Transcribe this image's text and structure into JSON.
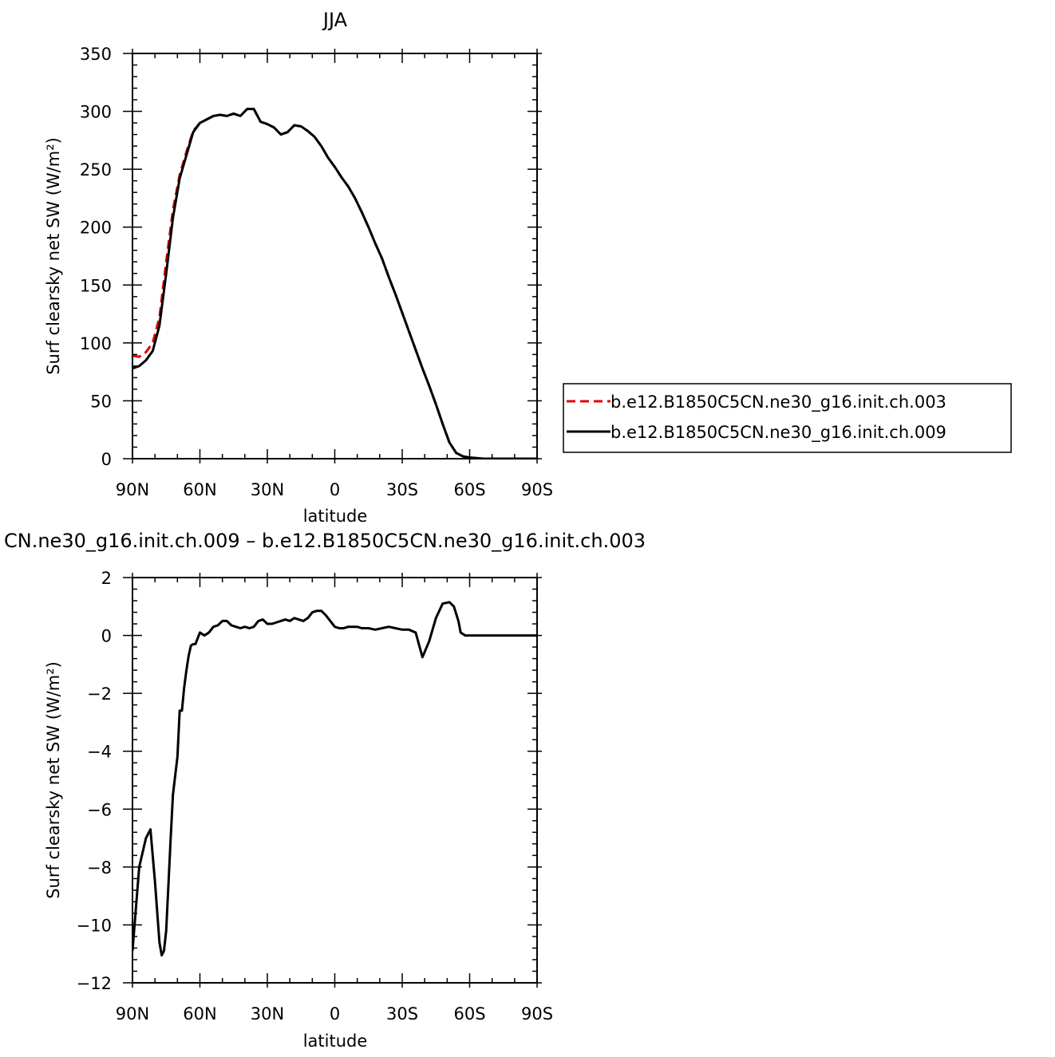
{
  "chart_data": [
    {
      "type": "line",
      "title": "JJA",
      "xlabel": "latitude",
      "ylabel": "Surf clearsky net SW (W/m²)",
      "xlim": [
        90,
        -90
      ],
      "ylim": [
        0,
        350
      ],
      "x_ticks": [
        90,
        60,
        30,
        0,
        -30,
        -60,
        -90
      ],
      "x_tick_labels": [
        "90N",
        "60N",
        "30N",
        "0",
        "30S",
        "60S",
        "90S"
      ],
      "y_ticks": [
        0,
        50,
        100,
        150,
        200,
        250,
        300,
        350
      ],
      "y_tick_labels": [
        "0",
        "50",
        "100",
        "150",
        "200",
        "250",
        "300",
        "350"
      ],
      "grid": false,
      "legend": "right",
      "series": [
        {
          "name": "b.e12.B1850C5CN.ne30_g16.init.ch.003",
          "color": "#e00000",
          "dash": "dashed",
          "x": [
            90,
            87,
            84,
            81,
            78,
            75,
            72,
            69,
            66,
            63,
            60,
            57,
            54,
            51,
            48,
            45,
            42,
            39,
            36,
            33,
            30,
            27,
            24,
            21,
            18,
            15,
            12,
            9,
            6,
            3,
            0,
            -3,
            -6,
            -9,
            -12,
            -15,
            -18,
            -21,
            -24,
            -27,
            -30,
            -33,
            -36,
            -39,
            -42,
            -45,
            -48,
            -51,
            -54,
            -57,
            -60,
            -63,
            -66,
            -69,
            -72,
            -75,
            -78,
            -81,
            -84,
            -87,
            -90
          ],
          "values": [
            89,
            88,
            92,
            100,
            122,
            170,
            215,
            245,
            265,
            283,
            290,
            293,
            296,
            297,
            296,
            298,
            296,
            302,
            302,
            291,
            289,
            286,
            280,
            282,
            288,
            287,
            283,
            278,
            270,
            260,
            252,
            243,
            235,
            225,
            213,
            200,
            186,
            173,
            157,
            142,
            126,
            110,
            94,
            78,
            63,
            47,
            30,
            14,
            5,
            2,
            1,
            0.5,
            0,
            0,
            0,
            0,
            0,
            0,
            0,
            0,
            0
          ]
        },
        {
          "name": "b.e12.B1850C5CN.ne30_g16.init.ch.009",
          "color": "#000000",
          "dash": "solid",
          "x": [
            90,
            87,
            84,
            81,
            78,
            75,
            72,
            69,
            66,
            63,
            60,
            57,
            54,
            51,
            48,
            45,
            42,
            39,
            36,
            33,
            30,
            27,
            24,
            21,
            18,
            15,
            12,
            9,
            6,
            3,
            0,
            -3,
            -6,
            -9,
            -12,
            -15,
            -18,
            -21,
            -24,
            -27,
            -30,
            -33,
            -36,
            -39,
            -42,
            -45,
            -48,
            -51,
            -54,
            -57,
            -60,
            -63,
            -66,
            -69,
            -72,
            -75,
            -78,
            -81,
            -84,
            -87,
            -90
          ],
          "values": [
            78,
            80,
            85,
            93,
            115,
            160,
            208,
            242,
            262,
            282,
            290,
            293,
            296,
            297,
            296,
            298,
            296,
            302,
            302,
            291,
            289,
            286,
            280,
            282,
            288,
            287,
            283,
            278,
            270,
            260,
            252,
            243,
            235,
            225,
            213,
            200,
            186,
            173,
            157,
            142,
            126,
            110,
            94,
            78,
            63,
            47,
            30,
            14,
            5,
            2,
            1,
            0.5,
            0,
            0,
            0,
            0,
            0,
            0,
            0,
            0,
            0
          ]
        }
      ]
    },
    {
      "type": "line",
      "title": "CN.ne30_g16.init.ch.009 – b.e12.B1850C5CN.ne30_g16.init.ch.003",
      "xlabel": "latitude",
      "ylabel": "Surf clearsky net SW (W/m²)",
      "xlim": [
        90,
        -90
      ],
      "ylim": [
        -12,
        2
      ],
      "x_ticks": [
        90,
        60,
        30,
        0,
        -30,
        -60,
        -90
      ],
      "x_tick_labels": [
        "90N",
        "60N",
        "30N",
        "0",
        "30S",
        "60S",
        "90S"
      ],
      "y_ticks": [
        -12,
        -10,
        -8,
        -6,
        -4,
        -2,
        0,
        2
      ],
      "y_tick_labels": [
        "−12",
        "−10",
        "−8",
        "−6",
        "−4",
        "−2",
        "0",
        "2"
      ],
      "grid": false,
      "series": [
        {
          "color": "#000000",
          "dash": "solid",
          "x": [
            90,
            87,
            84,
            82,
            80,
            78,
            77,
            76,
            75,
            74,
            73,
            72,
            70,
            69,
            68,
            67,
            66,
            65,
            64,
            63,
            62,
            60,
            58,
            56,
            54,
            52,
            50,
            48,
            46,
            44,
            42,
            40,
            38,
            36,
            34,
            32,
            30,
            28,
            26,
            24,
            22,
            20,
            18,
            16,
            14,
            12,
            10,
            8,
            6,
            4,
            2,
            0,
            -2,
            -4,
            -6,
            -8,
            -10,
            -12,
            -15,
            -18,
            -21,
            -24,
            -27,
            -30,
            -33,
            -36,
            -39,
            -42,
            -45,
            -48,
            -51,
            -53,
            -55,
            -56,
            -57,
            -58,
            -59,
            -60,
            -61,
            -62,
            -63,
            -64,
            -65,
            -66,
            -67,
            -68,
            -69,
            -70,
            -72,
            -75,
            -78,
            -81,
            -84,
            -87,
            -90
          ],
          "values": [
            -10.9,
            -8,
            -7,
            -6.7,
            -8.5,
            -10.6,
            -11.05,
            -10.9,
            -10.2,
            -8.6,
            -7,
            -5.5,
            -4.2,
            -2.6,
            -2.6,
            -1.8,
            -1.2,
            -0.7,
            -0.35,
            -0.3,
            -0.3,
            0.1,
            0,
            0.1,
            0.3,
            0.35,
            0.5,
            0.5,
            0.35,
            0.3,
            0.25,
            0.3,
            0.25,
            0.3,
            0.5,
            0.55,
            0.4,
            0.4,
            0.45,
            0.5,
            0.55,
            0.5,
            0.6,
            0.55,
            0.5,
            0.6,
            0.8,
            0.85,
            0.85,
            0.7,
            0.5,
            0.3,
            0.25,
            0.25,
            0.3,
            0.3,
            0.3,
            0.25,
            0.25,
            0.2,
            0.25,
            0.3,
            0.25,
            0.2,
            0.2,
            0.1,
            -0.75,
            -0.2,
            0.6,
            1.1,
            1.15,
            1.0,
            0.5,
            0.1,
            0.05,
            0.0,
            0.0,
            0.0,
            0.0,
            0.0,
            0.0,
            0.0,
            0.0,
            0.0,
            0.0,
            0.0,
            0.0,
            0.0,
            0.0,
            0.0,
            0.0,
            0.0,
            0.0,
            0.0,
            0.0
          ]
        }
      ]
    }
  ]
}
